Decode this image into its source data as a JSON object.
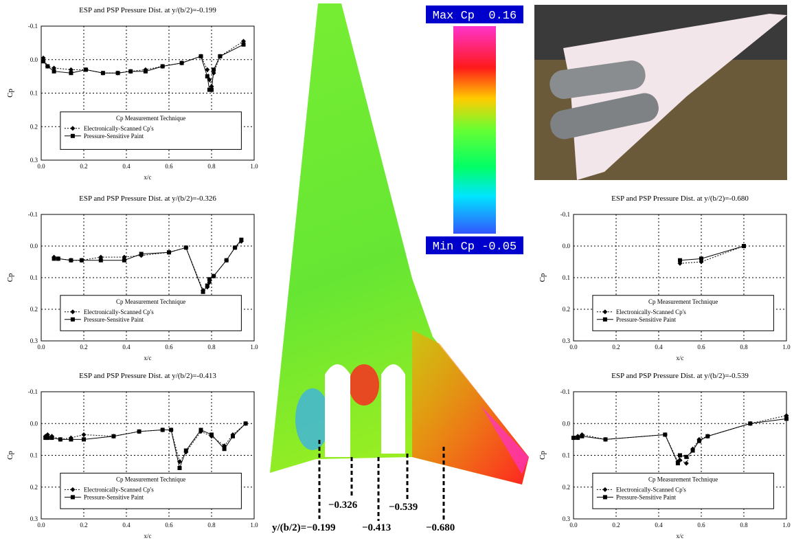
{
  "chart_data": [
    {
      "type": "line",
      "title": "ESP and PSP Pressure Dist. at y/(b/2)=-0.199",
      "x_label": "x/c",
      "y_label": "Cp",
      "legend_title": "Cp Measurement Technique",
      "xlim": [
        0,
        1
      ],
      "xticks": [
        {
          "value": 0,
          "label": "0.0"
        },
        0.2,
        0.4,
        0.6,
        0.8,
        {
          "value": 1,
          "label": "1.0"
        }
      ],
      "ylim": [
        -0.1,
        0.3
      ],
      "y_inverted": true,
      "yticks": [
        -0.1,
        {
          "value": 0,
          "label": "0.0"
        },
        0.1,
        0.2,
        0.3
      ],
      "grid": true,
      "series": [
        {
          "name": "Electronically-Scanned Cp's",
          "color": "#000000",
          "marker": "diamond",
          "dash": "dotted",
          "x": [
            0.01,
            0.03,
            0.06,
            0.14,
            0.21,
            0.29,
            0.36,
            0.42,
            0.49,
            0.57,
            0.66,
            0.75,
            0.78,
            0.79,
            0.8,
            0.81,
            0.84,
            0.95
          ],
          "values": [
            -0.005,
            0.02,
            0.025,
            0.03,
            0.03,
            0.04,
            0.04,
            0.035,
            0.03,
            0.02,
            0.01,
            -0.01,
            0.03,
            0.06,
            0.08,
            0.04,
            -0.01,
            -0.055
          ]
        },
        {
          "name": "Pressure-Sensitive Paint",
          "color": "#000000",
          "marker": "square",
          "dash": "solid",
          "x": [
            0.01,
            0.03,
            0.06,
            0.14,
            0.21,
            0.29,
            0.36,
            0.42,
            0.49,
            0.57,
            0.66,
            0.75,
            0.78,
            0.79,
            0.8,
            0.81,
            0.84,
            0.95
          ],
          "values": [
            0.005,
            0.02,
            0.035,
            0.04,
            0.03,
            0.04,
            0.04,
            0.035,
            0.035,
            0.02,
            0.01,
            -0.01,
            0.05,
            0.09,
            0.09,
            0.03,
            -0.01,
            -0.045
          ]
        }
      ]
    },
    {
      "type": "line",
      "title": "ESP and PSP Pressure Dist. at y/(b/2)=-0.326",
      "x_label": "x/c",
      "y_label": "Cp",
      "legend_title": "Cp Measurement Technique",
      "xlim": [
        0,
        1
      ],
      "xticks": [
        {
          "value": 0,
          "label": "0.0"
        },
        0.2,
        0.4,
        0.6,
        0.8,
        {
          "value": 1,
          "label": "1.0"
        }
      ],
      "ylim": [
        -0.1,
        0.3
      ],
      "y_inverted": true,
      "yticks": [
        -0.1,
        {
          "value": 0,
          "label": "0.0"
        },
        0.1,
        0.2,
        0.3
      ],
      "grid": true,
      "series": [
        {
          "name": "Electronically-Scanned Cp's",
          "color": "#000000",
          "marker": "diamond",
          "dash": "dotted",
          "x": [
            0.06,
            0.08,
            0.14,
            0.19,
            0.28,
            0.39,
            0.47,
            0.6,
            0.68,
            0.76,
            0.78,
            0.79,
            0.81,
            0.87,
            0.91,
            0.94
          ],
          "values": [
            0.035,
            0.04,
            0.045,
            0.045,
            0.035,
            0.035,
            0.03,
            0.02,
            0.005,
            0.14,
            0.13,
            0.115,
            0.095,
            0.045,
            0.005,
            -0.015
          ]
        },
        {
          "name": "Pressure-Sensitive Paint",
          "color": "#000000",
          "marker": "square",
          "dash": "solid",
          "x": [
            0.06,
            0.08,
            0.14,
            0.19,
            0.28,
            0.39,
            0.47,
            0.6,
            0.68,
            0.76,
            0.78,
            0.79,
            0.81,
            0.87,
            0.91,
            0.94
          ],
          "values": [
            0.04,
            0.04,
            0.045,
            0.045,
            0.045,
            0.045,
            0.025,
            0.02,
            0.005,
            0.145,
            0.125,
            0.105,
            0.095,
            0.045,
            0.005,
            -0.02
          ]
        }
      ]
    },
    {
      "type": "line",
      "title": "ESP and PSP Pressure Dist. at y/(b/2)=-0.413",
      "x_label": "x/c",
      "y_label": "Cp",
      "legend_title": "Cp Measurement Technique",
      "xlim": [
        0,
        1
      ],
      "xticks": [
        {
          "value": 0,
          "label": "0.0"
        },
        0.2,
        0.4,
        0.6,
        0.8,
        {
          "value": 1,
          "label": "1.0"
        }
      ],
      "ylim": [
        -0.1,
        0.3
      ],
      "y_inverted": true,
      "yticks": [
        -0.1,
        {
          "value": 0,
          "label": "0.0"
        },
        0.1,
        0.2,
        0.3
      ],
      "grid": true,
      "series": [
        {
          "name": "Electronically-Scanned Cp's",
          "color": "#000000",
          "marker": "diamond",
          "dash": "dotted",
          "x": [
            0.02,
            0.03,
            0.05,
            0.09,
            0.14,
            0.2,
            0.34,
            0.46,
            0.57,
            0.61,
            0.65,
            0.68,
            0.75,
            0.8,
            0.86,
            0.9,
            0.96
          ],
          "values": [
            0.04,
            0.035,
            0.04,
            0.05,
            0.045,
            0.035,
            0.04,
            0.025,
            0.02,
            0.02,
            0.12,
            0.09,
            0.025,
            0.04,
            0.07,
            0.035,
            0.0
          ]
        },
        {
          "name": "Pressure-Sensitive Paint",
          "color": "#000000",
          "marker": "square",
          "dash": "solid",
          "x": [
            0.02,
            0.03,
            0.05,
            0.09,
            0.14,
            0.2,
            0.34,
            0.46,
            0.57,
            0.61,
            0.65,
            0.68,
            0.75,
            0.8,
            0.86,
            0.9,
            0.96
          ],
          "values": [
            0.045,
            0.045,
            0.045,
            0.05,
            0.05,
            0.05,
            0.04,
            0.025,
            0.02,
            0.02,
            0.14,
            0.085,
            0.02,
            0.035,
            0.08,
            0.04,
            0.0
          ]
        }
      ]
    },
    {
      "type": "line",
      "title": "ESP and PSP Pressure Dist. at y/(b/2)=-0.680",
      "x_label": "x/c",
      "y_label": "Cp",
      "legend_title": "Cp Measurement Technique",
      "xlim": [
        0,
        1
      ],
      "xticks": [
        {
          "value": 0,
          "label": "0.0"
        },
        0.2,
        0.4,
        0.6,
        0.8,
        {
          "value": 1,
          "label": "1.0"
        }
      ],
      "ylim": [
        -0.1,
        0.3
      ],
      "y_inverted": true,
      "yticks": [
        -0.1,
        {
          "value": 0,
          "label": "0.0"
        },
        0.1,
        0.2,
        0.3
      ],
      "grid": true,
      "series": [
        {
          "name": "Electronically-Scanned Cp's",
          "color": "#000000",
          "marker": "diamond",
          "dash": "dotted",
          "x": [
            0.5,
            0.6,
            0.8
          ],
          "values": [
            0.055,
            0.05,
            0.0
          ]
        },
        {
          "name": "Pressure-Sensitive Paint",
          "color": "#000000",
          "marker": "square",
          "dash": "solid",
          "x": [
            0.5,
            0.6,
            0.8
          ],
          "values": [
            0.045,
            0.04,
            0.0
          ]
        }
      ]
    },
    {
      "type": "line",
      "title": "ESP and PSP Pressure Dist. at y/(b/2)=-0.539",
      "x_label": "x/c",
      "y_label": "Cp",
      "legend_title": "Cp Measurement Technique",
      "xlim": [
        0,
        1
      ],
      "xticks": [
        {
          "value": 0,
          "label": "0.0"
        },
        0.2,
        0.4,
        0.6,
        0.8,
        {
          "value": 1,
          "label": "1.0"
        }
      ],
      "ylim": [
        -0.1,
        0.3
      ],
      "y_inverted": true,
      "yticks": [
        -0.1,
        {
          "value": 0,
          "label": "0.0"
        },
        0.1,
        0.2,
        0.3
      ],
      "grid": true,
      "series": [
        {
          "name": "Electronically-Scanned Cp's",
          "color": "#000000",
          "marker": "diamond",
          "dash": "dotted",
          "x": [
            0.0,
            0.02,
            0.04,
            0.15,
            0.43,
            0.49,
            0.5,
            0.53,
            0.56,
            0.59,
            0.63,
            0.83,
            1.0
          ],
          "values": [
            0.045,
            0.04,
            0.035,
            0.05,
            0.035,
            0.12,
            0.115,
            0.125,
            0.08,
            0.05,
            0.04,
            0.0,
            -0.025
          ]
        },
        {
          "name": "Pressure-Sensitive Paint",
          "color": "#000000",
          "marker": "square",
          "dash": "solid",
          "x": [
            0.0,
            0.02,
            0.04,
            0.15,
            0.43,
            0.49,
            0.5,
            0.53,
            0.56,
            0.59,
            0.63,
            0.83,
            1.0
          ],
          "values": [
            0.045,
            0.045,
            0.04,
            0.05,
            0.035,
            0.125,
            0.1,
            0.105,
            0.085,
            0.055,
            0.04,
            0.0,
            -0.015
          ]
        }
      ]
    }
  ],
  "colorbar": {
    "max_label": "Max Cp  0.16",
    "min_label": "Min Cp -0.05"
  },
  "stations": [
    "y/(b/2)=−0.199",
    "−0.326",
    "−0.413",
    "−0.539",
    "−0.680"
  ]
}
